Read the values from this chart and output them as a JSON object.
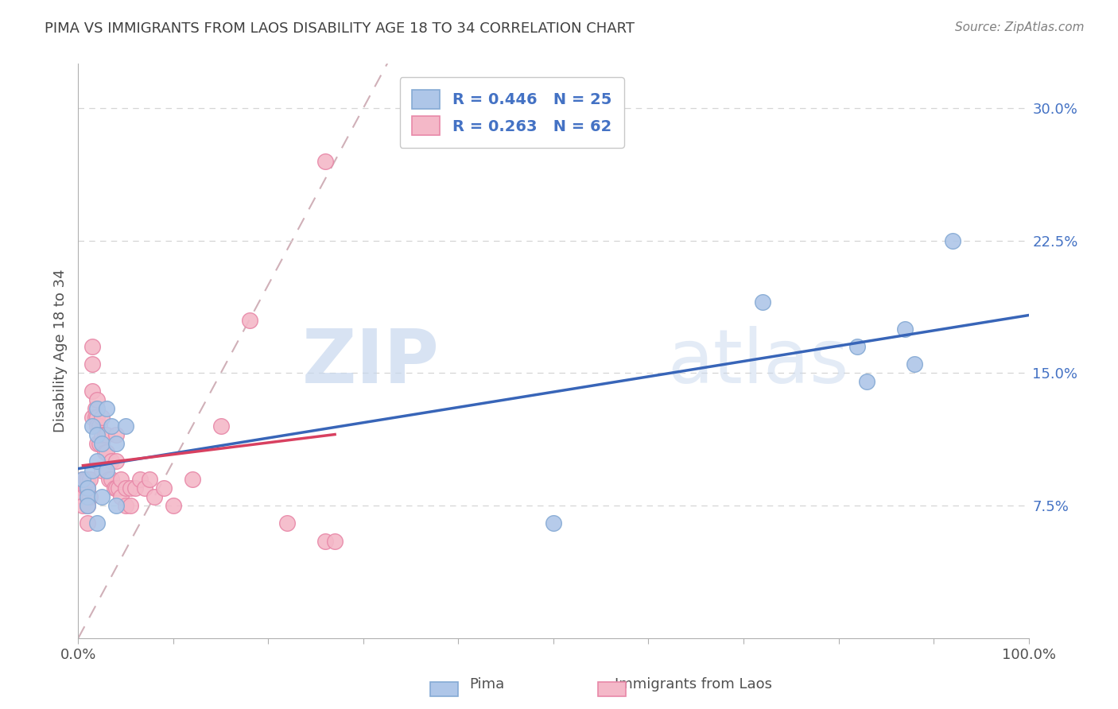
{
  "title": "PIMA VS IMMIGRANTS FROM LAOS DISABILITY AGE 18 TO 34 CORRELATION CHART",
  "source": "Source: ZipAtlas.com",
  "ylabel": "Disability Age 18 to 34",
  "xlim": [
    0.0,
    1.0
  ],
  "ylim": [
    0.0,
    0.325
  ],
  "yticks": [
    0.075,
    0.15,
    0.225,
    0.3
  ],
  "ytick_labels": [
    "7.5%",
    "15.0%",
    "22.5%",
    "30.0%"
  ],
  "pima_color": "#aec6e8",
  "pima_edge_color": "#85aad4",
  "laos_color": "#f4b8c8",
  "laos_edge_color": "#e888a8",
  "pima_line_color": "#3865b8",
  "laos_line_color": "#d84060",
  "diag_line_color": "#d0b0b8",
  "legend_R_pima": "R = 0.446",
  "legend_N_pima": "N = 25",
  "legend_R_laos": "R = 0.263",
  "legend_N_laos": "N = 62",
  "watermark_zip": "ZIP",
  "watermark_atlas": "atlas",
  "pima_x": [
    0.005,
    0.01,
    0.01,
    0.01,
    0.015,
    0.015,
    0.02,
    0.02,
    0.02,
    0.02,
    0.025,
    0.025,
    0.03,
    0.03,
    0.035,
    0.04,
    0.04,
    0.05,
    0.5,
    0.72,
    0.82,
    0.83,
    0.87,
    0.88,
    0.92
  ],
  "pima_y": [
    0.09,
    0.085,
    0.08,
    0.075,
    0.12,
    0.095,
    0.13,
    0.115,
    0.1,
    0.065,
    0.11,
    0.08,
    0.13,
    0.095,
    0.12,
    0.11,
    0.075,
    0.12,
    0.065,
    0.19,
    0.165,
    0.145,
    0.175,
    0.155,
    0.225
  ],
  "laos_x": [
    0.005,
    0.005,
    0.005,
    0.005,
    0.008,
    0.008,
    0.01,
    0.01,
    0.01,
    0.01,
    0.01,
    0.01,
    0.012,
    0.012,
    0.015,
    0.015,
    0.015,
    0.015,
    0.018,
    0.018,
    0.02,
    0.02,
    0.02,
    0.02,
    0.022,
    0.022,
    0.025,
    0.025,
    0.025,
    0.028,
    0.028,
    0.03,
    0.03,
    0.03,
    0.032,
    0.035,
    0.035,
    0.038,
    0.04,
    0.04,
    0.04,
    0.042,
    0.045,
    0.045,
    0.05,
    0.05,
    0.055,
    0.055,
    0.06,
    0.065,
    0.07,
    0.075,
    0.08,
    0.09,
    0.1,
    0.12,
    0.15,
    0.18,
    0.22,
    0.26,
    0.26,
    0.27
  ],
  "laos_y": [
    0.09,
    0.085,
    0.08,
    0.075,
    0.09,
    0.085,
    0.09,
    0.085,
    0.08,
    0.08,
    0.075,
    0.065,
    0.09,
    0.08,
    0.165,
    0.155,
    0.14,
    0.125,
    0.13,
    0.125,
    0.135,
    0.125,
    0.12,
    0.11,
    0.12,
    0.11,
    0.125,
    0.115,
    0.095,
    0.115,
    0.105,
    0.115,
    0.105,
    0.095,
    0.09,
    0.1,
    0.09,
    0.085,
    0.115,
    0.1,
    0.085,
    0.085,
    0.09,
    0.08,
    0.085,
    0.075,
    0.085,
    0.075,
    0.085,
    0.09,
    0.085,
    0.09,
    0.08,
    0.085,
    0.075,
    0.09,
    0.12,
    0.18,
    0.065,
    0.055,
    0.27,
    0.055
  ],
  "background_color": "#ffffff",
  "grid_color": "#d5d5d5",
  "title_color": "#404040",
  "axis_label_color": "#505050",
  "tick_color": "#4472c4"
}
